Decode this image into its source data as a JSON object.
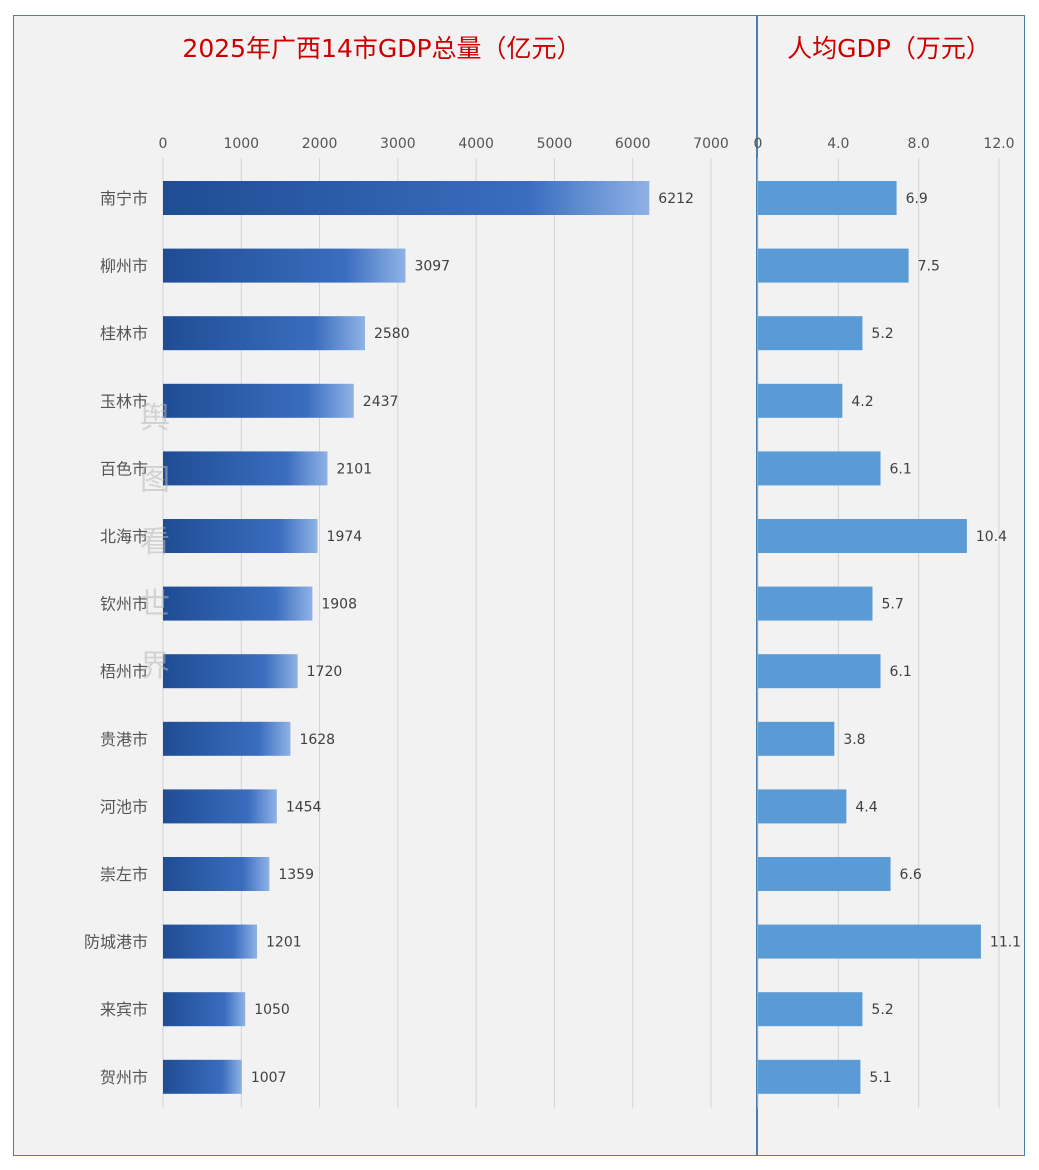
{
  "chart_data": [
    {
      "type": "bar",
      "orientation": "horizontal",
      "title": "2025年广西14市GDP总量（亿元）",
      "categories": [
        "南宁市",
        "柳州市",
        "桂林市",
        "玉林市",
        "百色市",
        "北海市",
        "钦州市",
        "梧州市",
        "贵港市",
        "河池市",
        "崇左市",
        "防城港市",
        "来宾市",
        "贺州市"
      ],
      "values": [
        6212,
        3097,
        2580,
        2437,
        2101,
        1974,
        1908,
        1720,
        1628,
        1454,
        1359,
        1201,
        1050,
        1007
      ],
      "value_labels": [
        "6212",
        "3097",
        "2580",
        "2437",
        "2101",
        "1974",
        "1908",
        "1720",
        "1628",
        "1454",
        "1359",
        "1201",
        "1050",
        "1007"
      ],
      "xlim": [
        0,
        7000
      ],
      "ticks": [
        0,
        1000,
        2000,
        3000,
        4000,
        5000,
        6000,
        7000
      ],
      "tick_labels": [
        "0",
        "1000",
        "2000",
        "3000",
        "4000",
        "5000",
        "6000",
        "7000"
      ],
      "axis_position": "top",
      "grid": true,
      "color": "#2f5ea8"
    },
    {
      "type": "bar",
      "orientation": "horizontal",
      "title": "人均GDP（万元）",
      "categories": [
        "南宁市",
        "柳州市",
        "桂林市",
        "玉林市",
        "百色市",
        "北海市",
        "钦州市",
        "梧州市",
        "贵港市",
        "河池市",
        "崇左市",
        "防城港市",
        "来宾市",
        "贺州市"
      ],
      "values": [
        6.9,
        7.5,
        5.2,
        4.2,
        6.1,
        10.4,
        5.7,
        6.1,
        3.8,
        4.4,
        6.6,
        11.1,
        5.2,
        5.1
      ],
      "value_labels": [
        "6.9",
        "7.5",
        "5.2",
        "4.2",
        "6.1",
        "10.4",
        "5.7",
        "6.1",
        "3.8",
        "4.4",
        "6.6",
        "11.1",
        "5.2",
        "5.1"
      ],
      "xlim": [
        0,
        12
      ],
      "ticks": [
        0,
        4,
        8,
        12
      ],
      "tick_labels": [
        "0",
        "4.0",
        "8.0",
        "12.0"
      ],
      "axis_position": "top",
      "grid": true,
      "color": "#5b9bd5"
    }
  ],
  "watermark_text": "舆图看世界"
}
